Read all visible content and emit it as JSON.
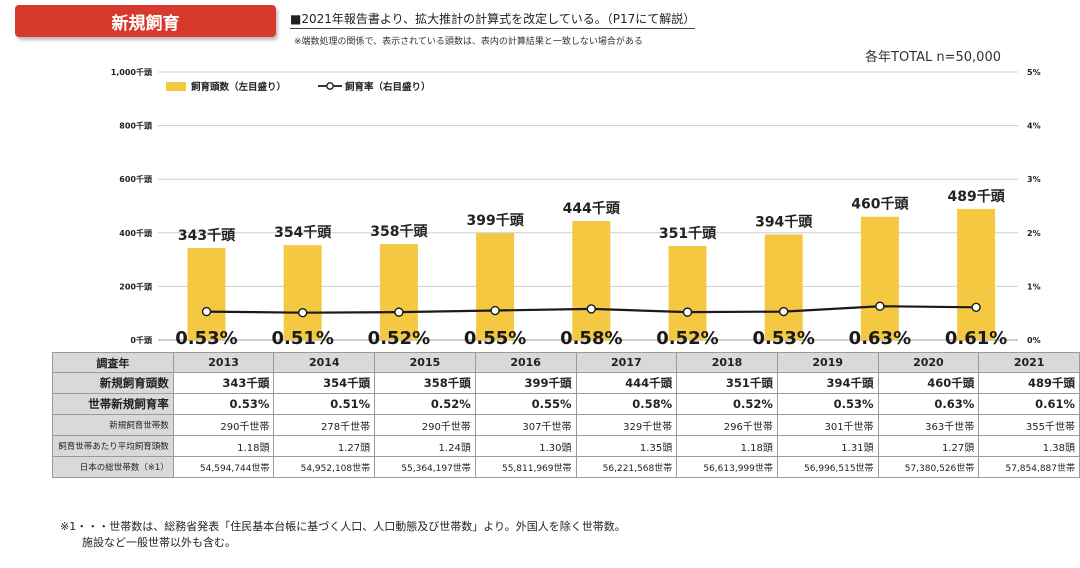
{
  "header": {
    "title": "新規飼育",
    "notice": "■2021年報告書より、拡大推計の計算式を改定している。（P17にて解説）",
    "footnote_small": "※端数処理の関係で、表示されている頭数は、表内の計算結果と一致しない場合がある",
    "total": "各年TOTAL n=50,000"
  },
  "colors": {
    "bar": "#f5c842",
    "line": "#1a1a1a",
    "title_bg": "#d73a2c",
    "table_header": "#d9d9d9"
  },
  "chart_data": {
    "type": "bar",
    "categories": [
      "2013",
      "2014",
      "2015",
      "2016",
      "2017",
      "2018",
      "2019",
      "2020",
      "2021"
    ],
    "series": [
      {
        "name": "飼育頭数（左目盛り）",
        "type": "bar",
        "axis": "left",
        "unit": "千頭",
        "values": [
          343,
          354,
          358,
          399,
          444,
          351,
          394,
          460,
          489
        ],
        "labels": [
          "343千頭",
          "354千頭",
          "358千頭",
          "399千頭",
          "444千頭",
          "351千頭",
          "394千頭",
          "460千頭",
          "489千頭"
        ]
      },
      {
        "name": "飼育率（右目盛り）",
        "type": "line",
        "axis": "right",
        "unit": "%",
        "values": [
          0.53,
          0.51,
          0.52,
          0.55,
          0.58,
          0.52,
          0.53,
          0.63,
          0.61
        ],
        "labels": [
          "0.53%",
          "0.51%",
          "0.52%",
          "0.55%",
          "0.58%",
          "0.52%",
          "0.53%",
          "0.63%",
          "0.61%"
        ]
      }
    ],
    "y_left": {
      "range": [
        0,
        1000
      ],
      "ticks": [
        0,
        200,
        400,
        600,
        800,
        1000
      ],
      "tick_labels": [
        "0千頭",
        "200千頭",
        "400千頭",
        "600千頭",
        "800千頭",
        "1,000千頭"
      ]
    },
    "y_right": {
      "range": [
        0,
        5
      ],
      "ticks": [
        0,
        1,
        2,
        3,
        4,
        5
      ],
      "tick_labels": [
        "0%",
        "1%",
        "2%",
        "3%",
        "4%",
        "5%"
      ]
    },
    "grid": true,
    "legend_position": "top-left"
  },
  "table": {
    "header_label": "調査年",
    "years": [
      "2013",
      "2014",
      "2015",
      "2016",
      "2017",
      "2018",
      "2019",
      "2020",
      "2021"
    ],
    "rows": [
      {
        "label": "新規飼育頭数",
        "cls": "b",
        "values": [
          "343千頭",
          "354千頭",
          "358千頭",
          "399千頭",
          "444千頭",
          "351千頭",
          "394千頭",
          "460千頭",
          "489千頭"
        ]
      },
      {
        "label": "世帯新規飼育率",
        "cls": "b dot",
        "values": [
          "0.53%",
          "0.51%",
          "0.52%",
          "0.55%",
          "0.58%",
          "0.52%",
          "0.53%",
          "0.63%",
          "0.61%"
        ]
      },
      {
        "label": "新規飼育世帯数",
        "cls": "s",
        "values": [
          "290千世帯",
          "278千世帯",
          "290千世帯",
          "307千世帯",
          "329千世帯",
          "296千世帯",
          "301千世帯",
          "363千世帯",
          "355千世帯"
        ]
      },
      {
        "label": "飼育世帯あたり平均飼育頭数",
        "cls": "s dot",
        "values": [
          "1.18頭",
          "1.27頭",
          "1.24頭",
          "1.30頭",
          "1.35頭",
          "1.18頭",
          "1.31頭",
          "1.27頭",
          "1.38頭"
        ]
      },
      {
        "label": "日本の総世帯数（※1）",
        "cls": "xs",
        "values": [
          "54,594,744世帯",
          "54,952,108世帯",
          "55,364,197世帯",
          "55,811,969世帯",
          "56,221,568世帯",
          "56,613,999世帯",
          "56,996,515世帯",
          "57,380,526世帯",
          "57,854,887世帯"
        ]
      }
    ]
  },
  "bottom_note": {
    "line1": "※1・・・世帯数は、総務省発表「住民基本台帳に基づく人口、人口動態及び世帯数」より。外国人を除く世帯数。",
    "line2": "施設など一般世帯以外も含む。"
  }
}
